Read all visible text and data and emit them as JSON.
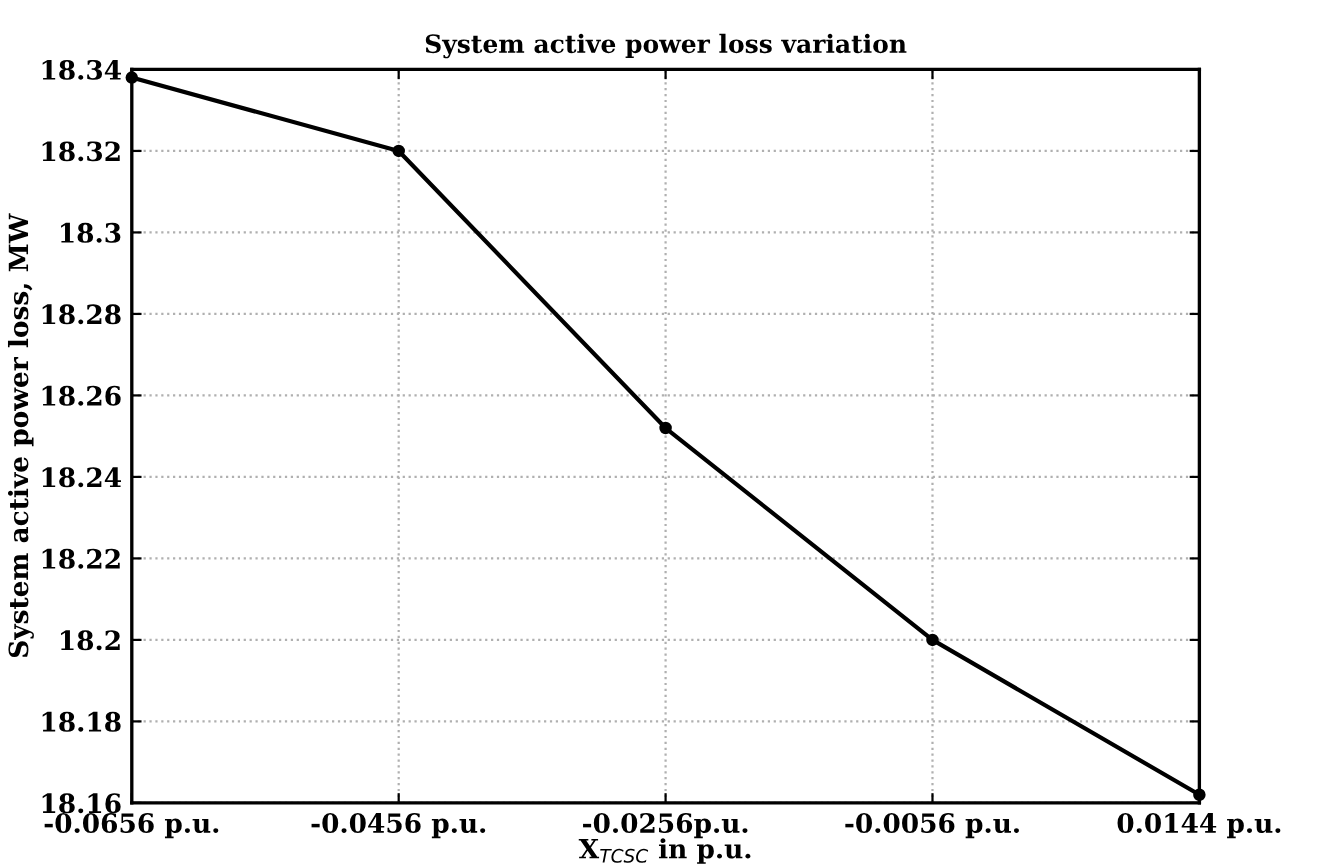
{
  "chart_data": {
    "type": "line",
    "title": "System active power loss variation",
    "xlabel": "X$_{TCSC}$ in p.u.",
    "ylabel": "System active power loss, MW",
    "x": [
      -0.0656,
      -0.0456,
      -0.0256,
      -0.0056,
      0.0144
    ],
    "series": [
      {
        "color": "#000000",
        "values": [
          18.338,
          18.32,
          18.252,
          18.2,
          18.162
        ]
      }
    ],
    "xlim": [
      -0.0656,
      0.0144
    ],
    "xticks": [
      {
        "value": -0.0656,
        "label": "-0.0656 p.u."
      },
      {
        "value": -0.0456,
        "label": "-0.0456 p.u."
      },
      {
        "value": -0.0256,
        "label": "-0.0256p.u."
      },
      {
        "value": -0.0056,
        "label": "-0.0056 p.u."
      },
      {
        "value": 0.0144,
        "label": "0.0144 p.u."
      }
    ],
    "ylim": [
      18.16,
      18.34
    ],
    "yticks": [
      18.16,
      18.18,
      18.2,
      18.22,
      18.24,
      18.26,
      18.28,
      18.3,
      18.32,
      18.34
    ],
    "grid": true,
    "marker": "circle",
    "line_style": "solid"
  }
}
